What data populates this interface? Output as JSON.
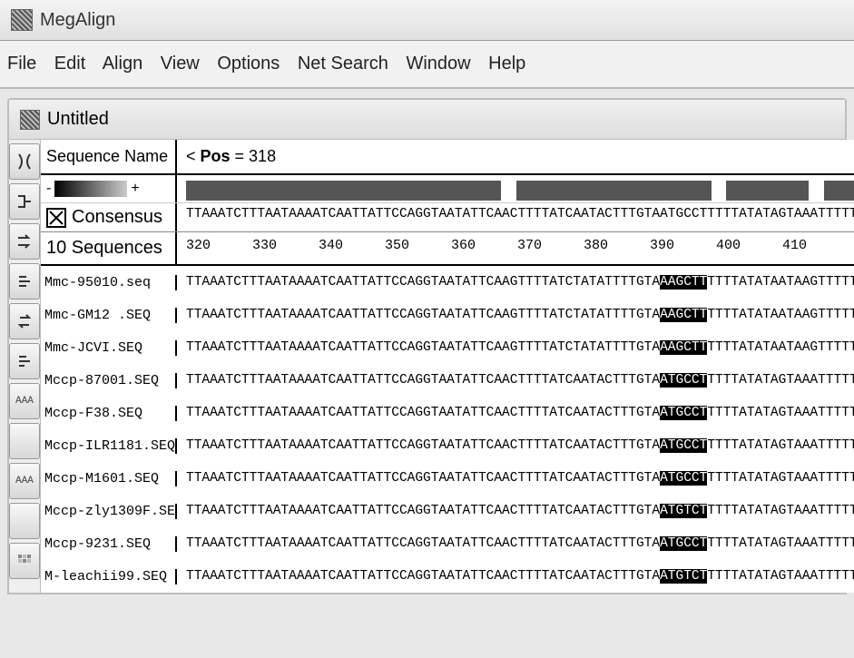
{
  "app_title": "MegAlign",
  "doc_title": "Untitled",
  "menu": [
    "File",
    "Edit",
    "Align",
    "View",
    "Options",
    "Net Search",
    "Window",
    "Help"
  ],
  "headers": {
    "name_col": "Sequence Name",
    "pos_prefix": "< ",
    "pos_label": "Pos",
    "pos_equals": " = ",
    "pos_value": "318"
  },
  "gradient": {
    "minus": "-",
    "plus": "+"
  },
  "consensus": {
    "label": "Consensus",
    "sequence": "TTAAATCTTTAATAAAATCAATTATTCCAGGTAATATTCAACTTTTATCAATACTTTGTAATGCCTTTTTATATAGTAAATTTTTTTGTTCTAAT"
  },
  "count_label": "10 Sequences",
  "ruler": {
    "start": 320,
    "end": 410,
    "step": 10
  },
  "coverage": {
    "segments": [
      {
        "w": 42,
        "filled": true
      },
      {
        "w": 2,
        "filled": false
      },
      {
        "w": 26,
        "filled": true
      },
      {
        "w": 2,
        "filled": false
      },
      {
        "w": 11,
        "filled": true
      },
      {
        "w": 2,
        "filled": false
      },
      {
        "w": 5,
        "filled": true
      },
      {
        "w": 1,
        "filled": false
      },
      {
        "w": 3,
        "filled": true
      },
      {
        "w": 2,
        "filled": false
      },
      {
        "w": 4,
        "filled": true
      }
    ],
    "bg": "#555555"
  },
  "highlight_color_bg": "#000000",
  "highlight_color_fg": "#ffffff",
  "sequences": [
    {
      "name": "Mmc-95010.seq",
      "pre": "TTAAATCTTTAATAAAATCAATTATTCCAGGTAATATTCAAGTTTTATCTATATTTTGTA",
      "hl": "AAGCTT",
      "post": "TTTTATATAATAAGTTTTTTTGTTCTAAT"
    },
    {
      "name": "Mmc-GM12 .SEQ",
      "pre": "TTAAATCTTTAATAAAATCAATTATTCCAGGTAATATTCAAGTTTTATCTATATTTTGTA",
      "hl": "AAGCTT",
      "post": "TTTTATATAATAAGTTTTTTTGTTCTAAT"
    },
    {
      "name": "Mmc-JCVI.SEQ",
      "pre": "TTAAATCTTTAATAAAATCAATTATTCCAGGTAATATTCAAGTTTTATCTATATTTTGTA",
      "hl": "AAGCTT",
      "post": "TTTTATATAATAAGTTTTTTTGTTCTAAT"
    },
    {
      "name": "Mccp-87001.SEQ",
      "pre": "TTAAATCTTTAATAAAATCAATTATTCCAGGTAATATTCAACTTTTATCAATACTTTGTA",
      "hl": "ATGCCT",
      "post": "TTTTATATAGTAAATTTTTTTGTTCTAAT"
    },
    {
      "name": "Mccp-F38.SEQ",
      "pre": "TTAAATCTTTAATAAAATCAATTATTCCAGGTAATATTCAACTTTTATCAATACTTTGTA",
      "hl": "ATGCCT",
      "post": "TTTTATATAGTAAATTTTTTTGTTCTAAT"
    },
    {
      "name": "Mccp-ILR1181.SEQ",
      "pre": "TTAAATCTTTAATAAAATCAATTATTCCAGGTAATATTCAACTTTTATCAATACTTTGTA",
      "hl": "ATGCCT",
      "post": "TTTTATATAGTAAATTTTTTTGTTCTAAT"
    },
    {
      "name": "Mccp-M1601.SEQ",
      "pre": "TTAAATCTTTAATAAAATCAATTATTCCAGGTAATATTCAACTTTTATCAATACTTTGTA",
      "hl": "ATGCCT",
      "post": "TTTTATATAGTAAATTTTTTTGTTCTAAT"
    },
    {
      "name": "Mccp-zly1309F.SE",
      "pre": "TTAAATCTTTAATAAAATCAATTATTCCAGGTAATATTCAACTTTTATCAATACTTTGTA",
      "hl": "ATGTCT",
      "post": "TTTTATATAGTAAATTTTTTTGTTCTAAT"
    },
    {
      "name": "Mccp-9231.SEQ",
      "pre": "TTAAATCTTTAATAAAATCAATTATTCCAGGTAATATTCAACTTTTATCAATACTTTGTA",
      "hl": "ATGCCT",
      "post": "TTTTATATAGTAAATTTTTTTGTTCTAAT"
    },
    {
      "name": "M-leachii99.SEQ",
      "pre": "TTAAATCTTTAATAAAATCAATTATTCCAGGTAATATTCAACTTTTATCAATACTTTGTA",
      "hl": "ATGTCT",
      "post": "TTTTATATAGTAAATTTTTTTGTTCTAAT"
    }
  ],
  "toolbar_icons": [
    "dna-icon",
    "tree-icon",
    "arrows-icon",
    "align-icon",
    "swap-icon",
    "sort-icon",
    "aaa-icon",
    "blank-icon",
    "aaa-icon",
    "blank-icon",
    "matrix-icon"
  ]
}
